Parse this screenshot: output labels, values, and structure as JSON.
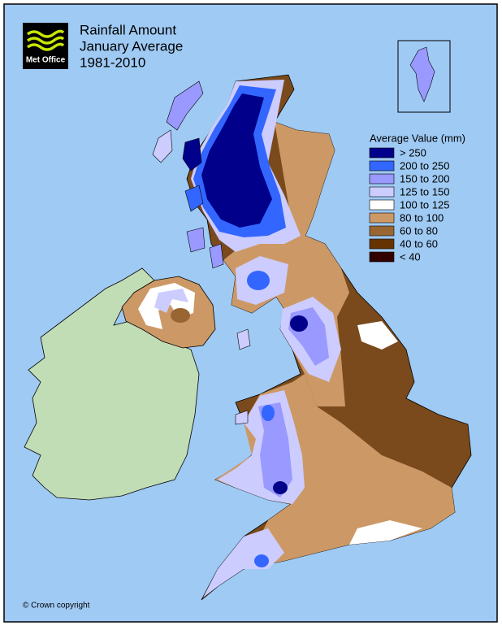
{
  "logo": "Met Office",
  "title": [
    "Rainfall Amount",
    "January Average",
    "1981-2010"
  ],
  "legend": {
    "title": "Average Value (mm)",
    "items": [
      {
        "label": "> 250",
        "color": "#00008b"
      },
      {
        "label": "200 to 250",
        "color": "#3366ff"
      },
      {
        "label": "150 to 200",
        "color": "#9999ff"
      },
      {
        "label": "125 to 150",
        "color": "#ccccff"
      },
      {
        "label": "100 to 125",
        "color": "#ffffff"
      },
      {
        "label": "80 to 100",
        "color": "#cc9966"
      },
      {
        "label": "60 to 80",
        "color": "#996633"
      },
      {
        "label": "40 to 60",
        "color": "#663300"
      },
      {
        "label": "< 40",
        "color": "#330000"
      }
    ]
  },
  "copyright": "© Crown copyright"
}
